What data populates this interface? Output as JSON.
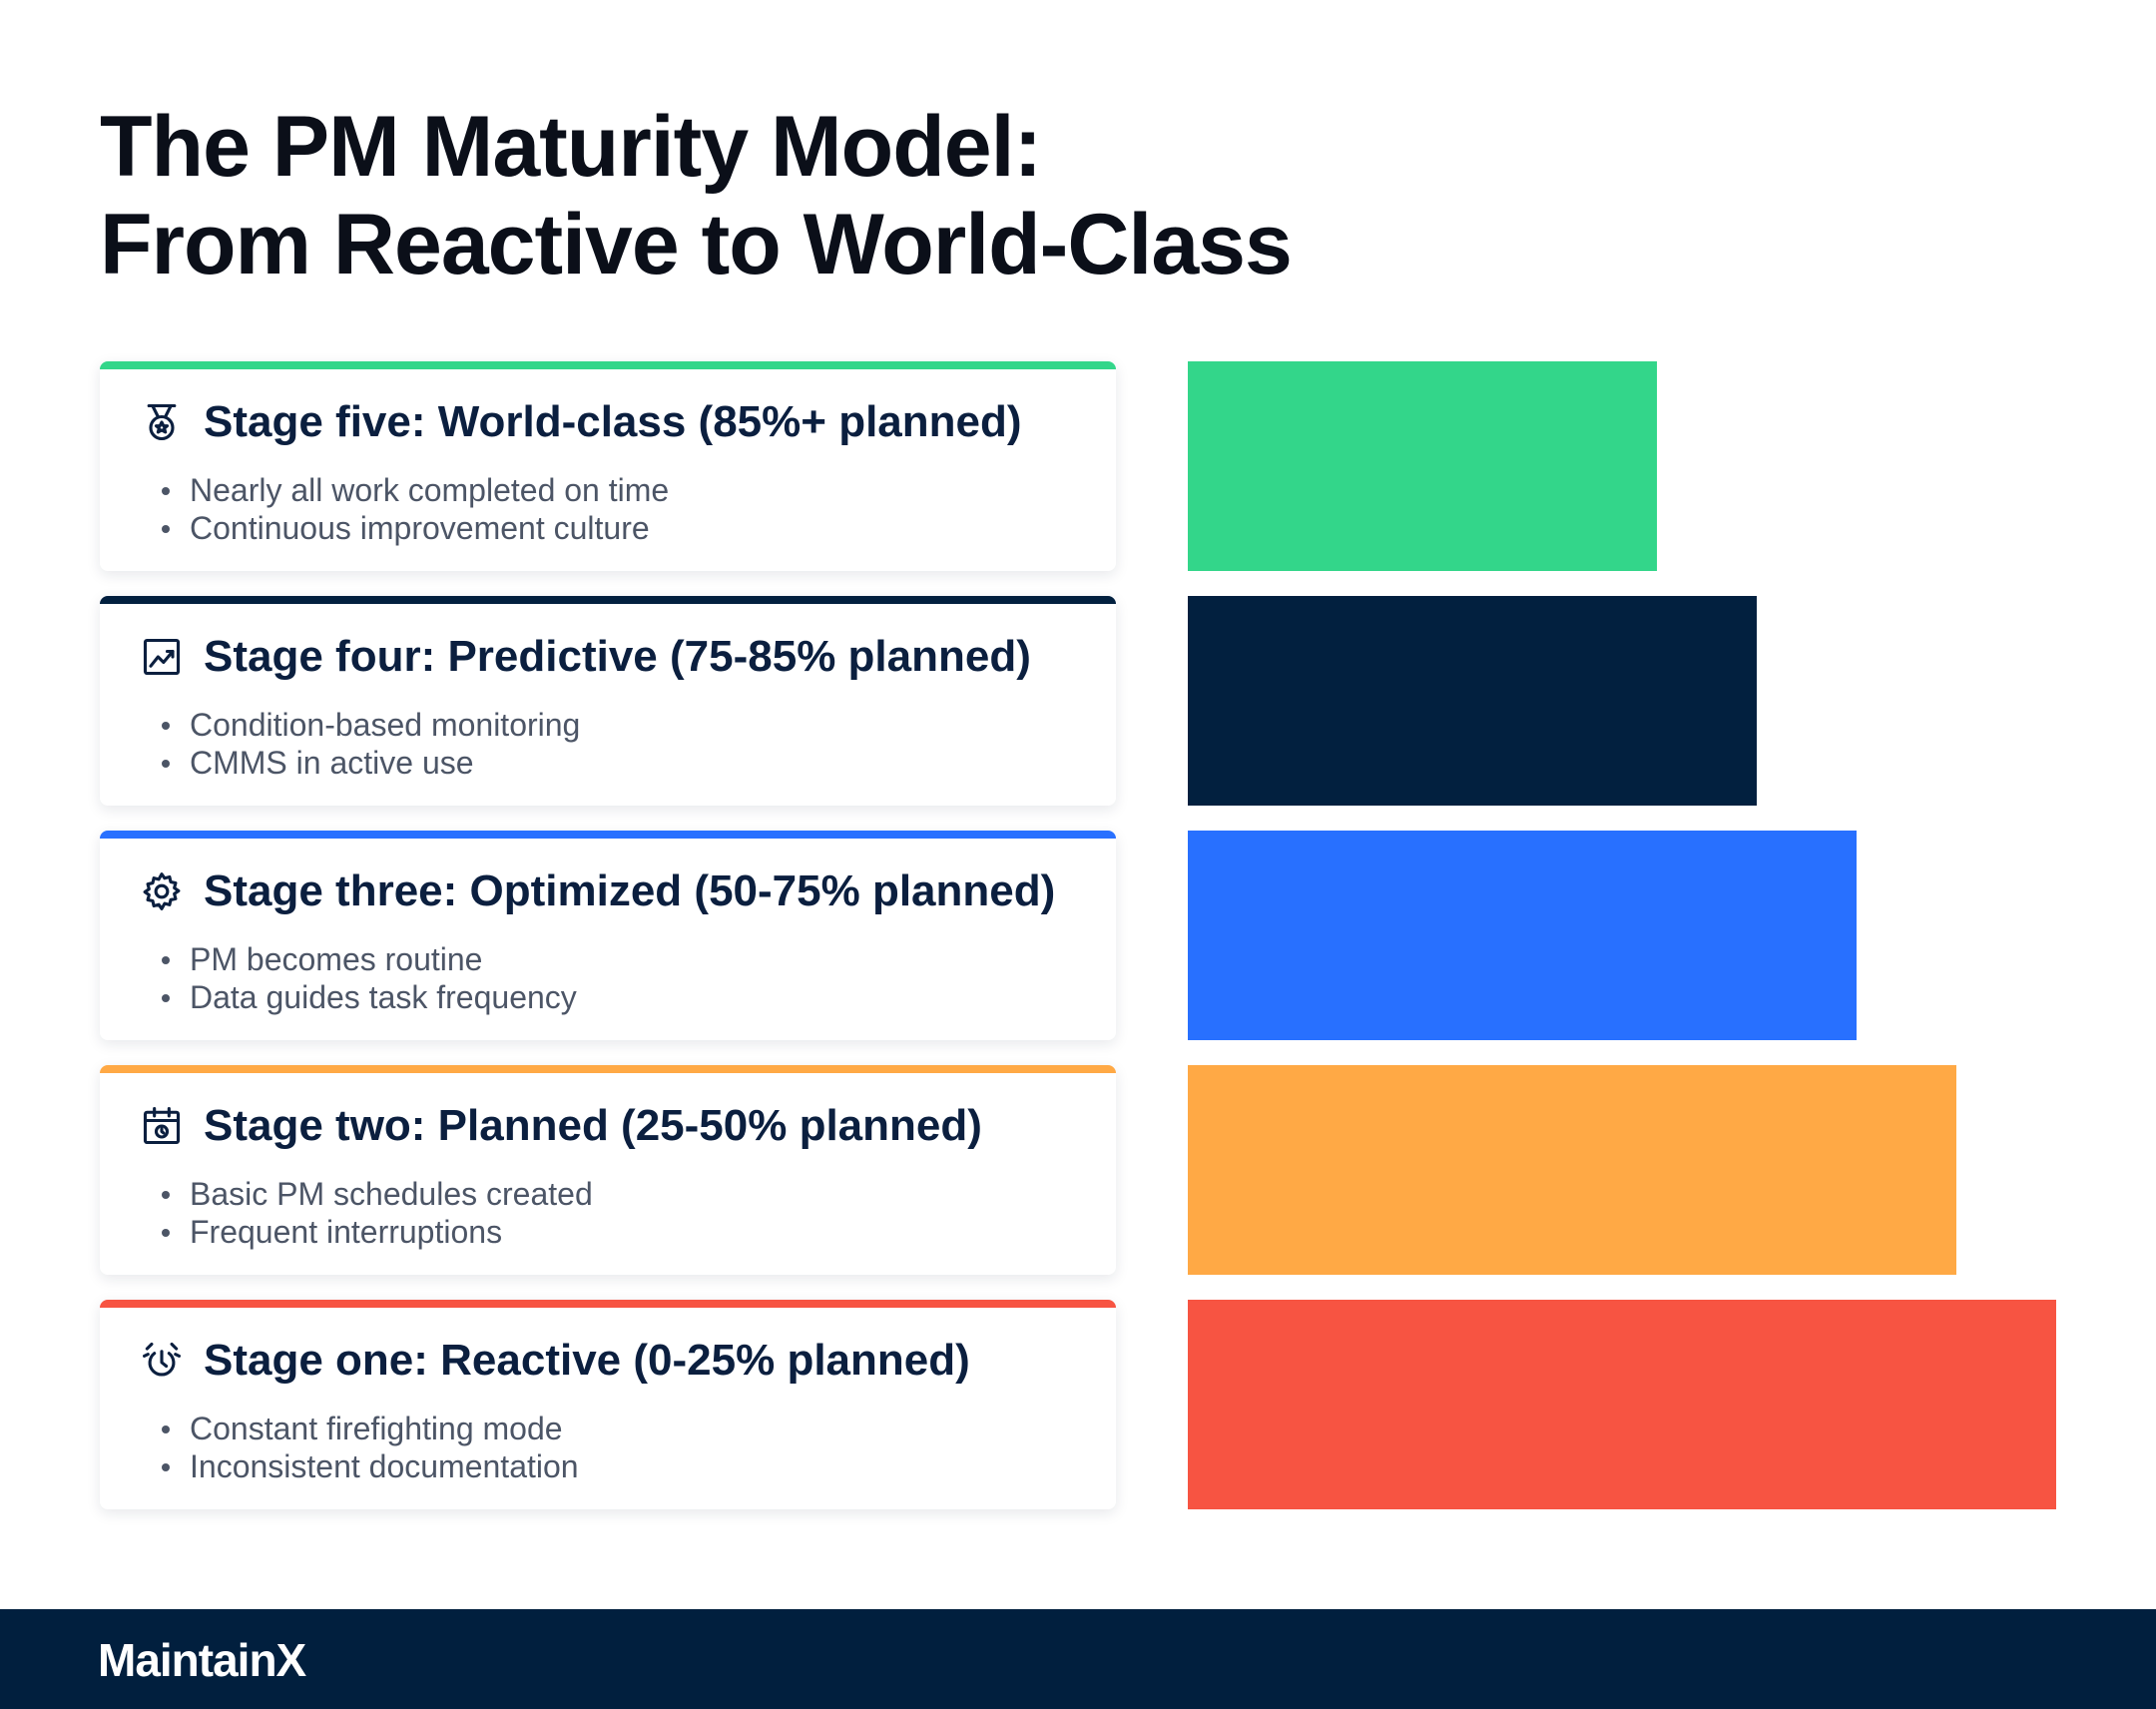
{
  "title": {
    "line1": "The PM Maturity Model:",
    "line2": "From Reactive to World-Class"
  },
  "stages": [
    {
      "title": "Stage five: World-class (85%+ planned)",
      "icon": "medal-icon",
      "color": "#33d68a",
      "bullets": [
        "Nearly all work completed on time",
        "Continuous improvement culture"
      ],
      "bar_value": 0.54
    },
    {
      "title": "Stage four: Predictive (75-85% planned)",
      "icon": "chart-icon",
      "color": "#02203f",
      "bullets": [
        "Condition-based monitoring",
        "CMMS in active use"
      ],
      "bar_value": 0.655
    },
    {
      "title": "Stage three: Optimized (50-75% planned)",
      "icon": "gear-icon",
      "color": "#2870ff",
      "bullets": [
        "PM becomes routine",
        "Data guides task frequency"
      ],
      "bar_value": 0.77
    },
    {
      "title": "Stage two: Planned (25-50% planned)",
      "icon": "calendar-icon",
      "color": "#ffa945",
      "bullets": [
        "Basic PM schedules created",
        "Frequent interruptions"
      ],
      "bar_value": 0.885
    },
    {
      "title": "Stage one: Reactive (0-25% planned)",
      "icon": "alarm-icon",
      "color": "#f75442",
      "bullets": [
        "Constant firefighting mode",
        "Inconsistent documentation"
      ],
      "bar_value": 1.0
    }
  ],
  "footer": {
    "brand": "MaintainX"
  }
}
